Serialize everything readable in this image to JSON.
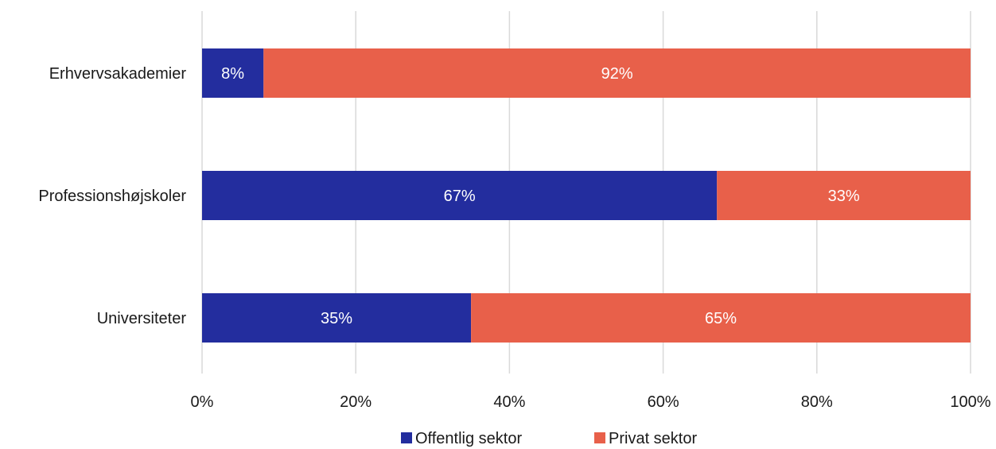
{
  "chart_data": {
    "type": "bar",
    "orientation": "horizontal",
    "stacked": true,
    "categories": [
      "Erhvervsakademier",
      "Professionshøjskoler",
      "Universiteter"
    ],
    "series": [
      {
        "name": "Offentlig sektor",
        "values": [
          8,
          67,
          35
        ],
        "labels": [
          "8%",
          "67%",
          "35%"
        ],
        "color": "#232d9e"
      },
      {
        "name": "Privat sektor",
        "values": [
          92,
          33,
          65
        ],
        "labels": [
          "92%",
          "33%",
          "65%"
        ],
        "color": "#e8604a"
      }
    ],
    "xlim": [
      0,
      100
    ],
    "xticks": [
      0,
      20,
      40,
      60,
      80,
      100
    ],
    "xtick_labels": [
      "0%",
      "20%",
      "40%",
      "60%",
      "80%",
      "100%"
    ],
    "grid": "vertical",
    "legend_position": "bottom",
    "title": "",
    "xlabel": "",
    "ylabel": ""
  }
}
